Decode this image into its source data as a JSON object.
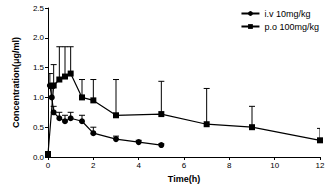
{
  "chart_data": {
    "type": "line",
    "x_label": "Time(h)",
    "y_label": "Concentration(μg/ml)",
    "xlim": [
      0,
      12
    ],
    "xticks": [
      0,
      2,
      4,
      6,
      8,
      10,
      12
    ],
    "ylim": [
      0,
      2.5
    ],
    "yticks": [
      {
        "value": 0,
        "label": "0.0"
      },
      {
        "value": 0.5,
        "label": "0.5"
      },
      {
        "value": 1,
        "label": "1.0"
      },
      {
        "value": 1.5,
        "label": "1.5"
      },
      {
        "value": 2,
        "label": "2.0"
      },
      {
        "value": 2.5,
        "label": "2.5"
      }
    ],
    "grid": false,
    "legend": "upper right",
    "series": [
      {
        "name": "i.v 10mg/kg",
        "color": "#000000",
        "marker": "circle",
        "line_style": "solid",
        "x": [
          0.083,
          0.167,
          0.25,
          0.5,
          0.75,
          1,
          1.5,
          2,
          3,
          4,
          5
        ],
        "values": [
          1.2,
          1.0,
          0.75,
          0.65,
          0.6,
          0.65,
          0.6,
          0.4,
          0.3,
          0.25,
          0.2
        ],
        "errors": [
          0.2,
          0.15,
          0.1,
          0.1,
          0.1,
          0.1,
          0.1,
          0.1,
          0.05,
          0.03,
          0.02
        ]
      },
      {
        "name": "p.o 100mg/kg",
        "color": "#000000",
        "marker": "square",
        "line_style": "solid",
        "x": [
          0,
          0.25,
          0.5,
          0.75,
          1,
          1.5,
          2,
          3,
          5,
          7,
          9,
          12
        ],
        "values": [
          0.05,
          1.2,
          1.3,
          1.35,
          1.4,
          1.0,
          0.95,
          0.7,
          0.72,
          0.55,
          0.5,
          0.28
        ],
        "errors": [
          0.0,
          0.35,
          0.55,
          0.5,
          0.45,
          0.3,
          0.35,
          0.6,
          0.55,
          0.6,
          0.35,
          0.2
        ]
      }
    ]
  }
}
